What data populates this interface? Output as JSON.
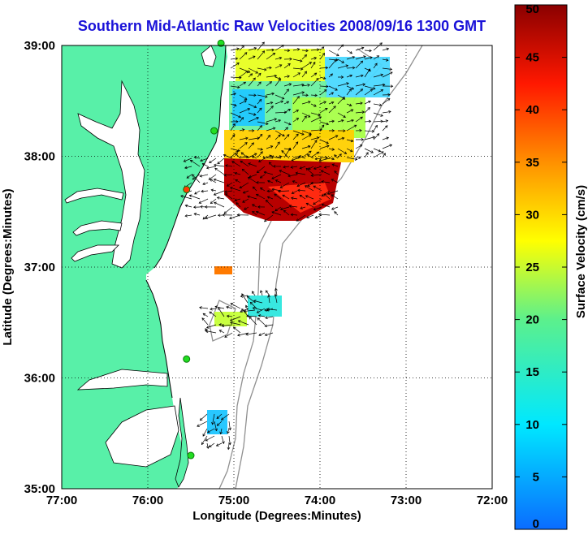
{
  "title": "Southern Mid-Atlantic Raw Velocities 2008/09/16 1300 GMT",
  "xlabel": "Longitude (Degrees:Minutes)",
  "ylabel": "Latitude (Degrees:Minutes)",
  "colorbar_label": "Surface Velocity (cm/s)",
  "lon_range": [
    -77,
    -72
  ],
  "lat_range": [
    35,
    39
  ],
  "lon_ticks": [
    {
      "value": -77,
      "label": "77:00"
    },
    {
      "value": -76,
      "label": "76:00"
    },
    {
      "value": -75,
      "label": "75:00"
    },
    {
      "value": -74,
      "label": "74:00"
    },
    {
      "value": -73,
      "label": "73:00"
    },
    {
      "value": -72,
      "label": "72:00"
    }
  ],
  "lat_ticks": [
    {
      "value": 39,
      "label": "39:00"
    },
    {
      "value": 38,
      "label": "38:00"
    },
    {
      "value": 37,
      "label": "37:00"
    },
    {
      "value": 36,
      "label": "36:00"
    },
    {
      "value": 35,
      "label": "35:00"
    }
  ],
  "colorbar_ticks": [
    "0",
    "5",
    "10",
    "15",
    "20",
    "25",
    "30",
    "35",
    "40",
    "45",
    "50"
  ],
  "colorbar_range": [
    0,
    50
  ],
  "colors": {
    "title": "#1a12d8",
    "land": "#58f0a8",
    "coastline": "#000000",
    "bathymetry": "#909090",
    "station": "#22dd22",
    "station_inactive": "#ff3b00"
  },
  "chart_data": {
    "type": "map-vector-field",
    "grid": "dotted lines at each degree",
    "regions": [
      {
        "name": "delaware-bay-region",
        "lon": [
          -75.2,
          -73.2
        ],
        "lat": [
          38.4,
          39.0
        ],
        "speed": 14,
        "note": "cyan/yellow mixed"
      },
      {
        "name": "central-band",
        "lon": [
          -75.0,
          -73.6
        ],
        "lat": [
          38.0,
          38.4
        ],
        "speed": 22
      },
      {
        "name": "maryland-shelf-jet",
        "lon": [
          -75.1,
          -74.0
        ],
        "lat": [
          37.4,
          38.0
        ],
        "speed": 48
      },
      {
        "name": "virginia-patch-small",
        "lon": [
          -75.2,
          -75.0
        ],
        "lat": [
          36.9,
          37.0
        ],
        "speed": 36
      },
      {
        "name": "virginia-patch-mid",
        "lon": [
          -75.1,
          -74.5
        ],
        "lat": [
          36.4,
          36.7
        ],
        "speed": 20
      },
      {
        "name": "hatteras-patch",
        "lon": [
          -75.3,
          -75.1
        ],
        "lat": [
          35.5,
          35.7
        ],
        "speed": 12
      }
    ],
    "stations": [
      {
        "lon": -75.15,
        "lat": 39.02,
        "active": true
      },
      {
        "lon": -75.23,
        "lat": 38.23,
        "active": true
      },
      {
        "lon": -75.55,
        "lat": 37.7,
        "active": false
      },
      {
        "lon": -75.55,
        "lat": 36.17,
        "active": true
      },
      {
        "lon": -75.5,
        "lat": 35.3,
        "active": true
      }
    ]
  }
}
